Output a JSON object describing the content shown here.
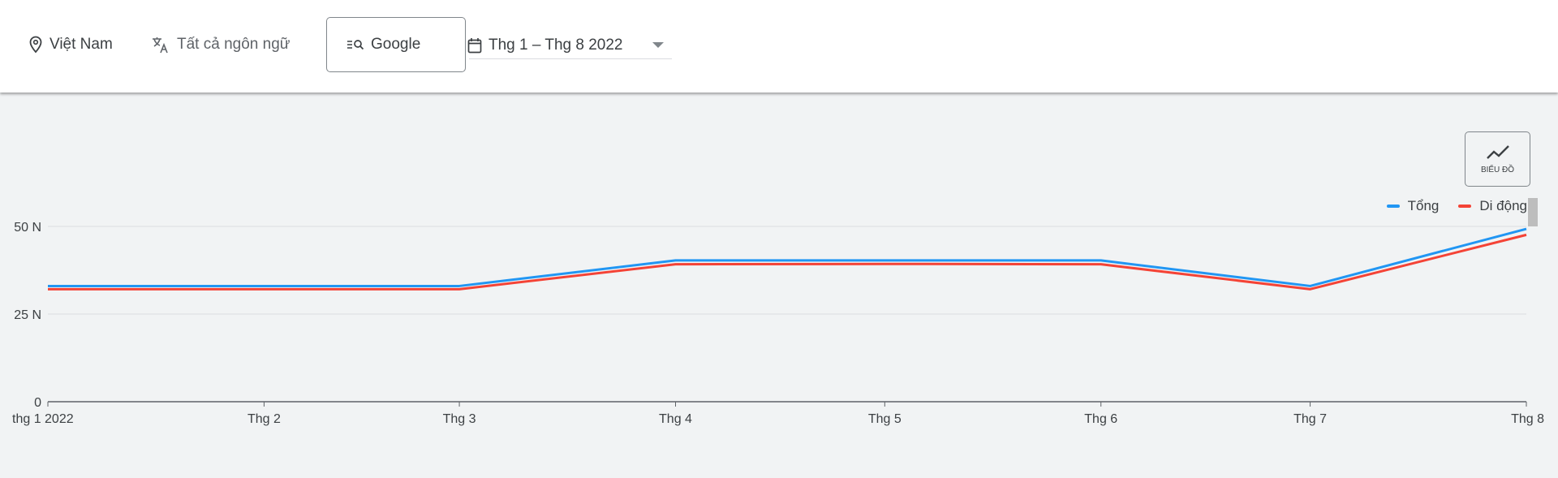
{
  "header": {
    "location": {
      "label": "Việt Nam",
      "icon": "location-pin-icon"
    },
    "language": {
      "label": "Tất cả ngôn ngữ",
      "icon": "translate-icon"
    },
    "source": {
      "label": "Google",
      "icon": "search-list-icon"
    },
    "date_range": {
      "label": "Thg 1 – Thg 8 2022",
      "icon": "calendar-icon"
    }
  },
  "chart_button": {
    "label": "BIỂU ĐỒ",
    "icon": "line-chart-icon"
  },
  "chart_data": {
    "type": "line",
    "x": [
      "2022-01-01",
      "2022-02-01",
      "2022-03-01",
      "2022-04-01",
      "2022-05-01",
      "2022-06-01",
      "2022-07-01",
      "2022-08-01"
    ],
    "x_tick_labels": [
      "thg 1 2022",
      "Thg 2",
      "Thg 3",
      "Thg 4",
      "Thg 5",
      "Thg 6",
      "Thg 7",
      "Thg 8"
    ],
    "y_tick_labels": [
      "0",
      "25 N",
      "50 N"
    ],
    "y_ticks": [
      0,
      25000,
      50000
    ],
    "ylim": [
      0,
      50000
    ],
    "grid": true,
    "legend_position": "top-right",
    "series": [
      {
        "name": "Tổng",
        "color": "#2196f3",
        "values": [
          33000,
          33000,
          33000,
          40300,
          40300,
          40300,
          33000,
          49300
        ]
      },
      {
        "name": "Di động",
        "color": "#f44336",
        "values": [
          32100,
          32100,
          32100,
          39200,
          39300,
          39200,
          32100,
          47600
        ]
      }
    ]
  }
}
